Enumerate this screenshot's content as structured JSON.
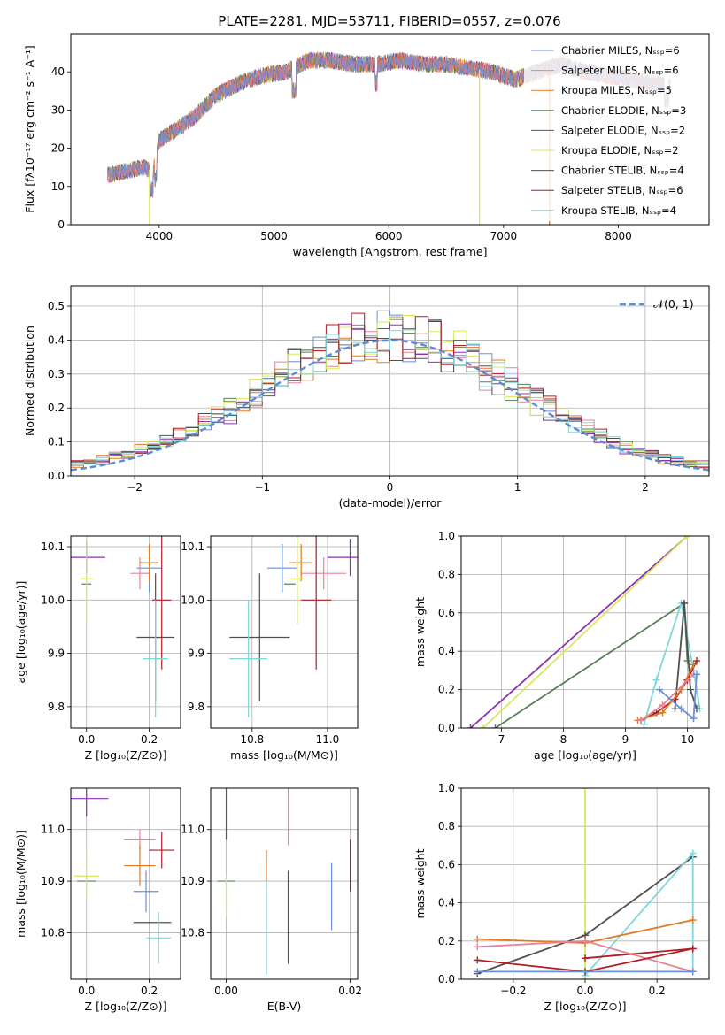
{
  "colors": {
    "chabrier_miles": "#6a8fdc",
    "salpeter_miles": "#e8829b",
    "kroupa_miles": "#e07a25",
    "chabrier_elodie": "#55805a",
    "salpeter_elodie": "#8e2fb0",
    "kroupa_elodie": "#d6ea5a",
    "chabrier_stelib": "#505050",
    "salpeter_stelib": "#b01e22",
    "kroupa_stelib": "#7fd7d8",
    "gaussian": "#5b8ad6"
  },
  "chart_data": [
    {
      "id": "spectrum",
      "type": "line",
      "title": "PLATE=2281, MJD=53711, FIBERID=0557, z=0.076",
      "xlabel": "wavelength [Angstrom, rest frame]",
      "ylabel": "Flux [fλ10⁻¹⁷ erg cm⁻² s⁻¹ A⁻¹]",
      "xlim": [
        3230,
        8790
      ],
      "ylim": [
        0,
        50
      ],
      "xticks": [
        "4000",
        "5000",
        "6000",
        "7000",
        "8000"
      ],
      "yticks": [
        "0",
        "10",
        "20",
        "30",
        "40"
      ],
      "grid": false,
      "legend_position": "top-right",
      "envelope": {
        "x": [
          3550,
          3700,
          3850,
          3950,
          4000,
          4100,
          4200,
          4300,
          4400,
          4500,
          4700,
          4900,
          5100,
          5300,
          5500,
          5700,
          5900,
          6100,
          6300,
          6500,
          6700,
          6900,
          7100,
          7300,
          7500,
          7700,
          7900,
          8100,
          8300,
          8450
        ],
        "y": [
          13,
          14,
          15,
          14,
          22,
          24,
          26,
          28,
          31,
          34,
          37,
          39,
          40,
          43,
          43,
          42,
          42,
          43,
          42,
          42,
          41,
          40,
          38,
          40,
          42,
          40,
          39,
          38,
          37,
          36
        ]
      },
      "spikes_x": [
        3915,
        6790,
        7400
      ],
      "series": [
        {
          "name": "Chabrier MILES, Nₛₛₚ=6"
        },
        {
          "name": "Salpeter MILES, Nₛₛₚ=6"
        },
        {
          "name": "Kroupa MILES, Nₛₛₚ=5"
        },
        {
          "name": "Chabrier ELODIE, Nₛₛₚ=3"
        },
        {
          "name": "Salpeter ELODIE, Nₛₛₚ=2"
        },
        {
          "name": "Kroupa ELODIE, Nₛₛₚ=2"
        },
        {
          "name": "Chabrier STELIB, Nₛₛₚ=4"
        },
        {
          "name": "Salpeter STELIB, Nₛₛₚ=6"
        },
        {
          "name": "Kroupa STELIB, Nₛₛₚ=4"
        }
      ]
    },
    {
      "id": "residuals",
      "type": "histogram",
      "xlabel": "(data-model)/error",
      "ylabel": "Normed distribution",
      "xlim": [
        -2.5,
        2.5
      ],
      "ylim": [
        0,
        0.56
      ],
      "xticks": [
        "−2",
        "−1",
        "0",
        "1",
        "2"
      ],
      "yticks": [
        "0.0",
        "0.1",
        "0.2",
        "0.3",
        "0.4",
        "0.5"
      ],
      "grid": true,
      "legend_position": "top-right",
      "legend": "𝒩(0, 1)",
      "bin_width": 0.1,
      "bin_start": -2.5,
      "profile": [
        0.02,
        0.02,
        0.03,
        0.03,
        0.04,
        0.05,
        0.06,
        0.07,
        0.08,
        0.09,
        0.11,
        0.12,
        0.14,
        0.16,
        0.17,
        0.18,
        0.19,
        0.21,
        0.23,
        0.25,
        0.26,
        0.28,
        0.3,
        0.32,
        0.33,
        0.35,
        0.37,
        0.38,
        0.39,
        0.4,
        0.41,
        0.42,
        0.43,
        0.44,
        0.45,
        0.46,
        0.45,
        0.44,
        0.43,
        0.42,
        0.41,
        0.4,
        0.39,
        0.38,
        0.36,
        0.34,
        0.32,
        0.3,
        0.28,
        0.26,
        0.24,
        0.22,
        0.2,
        0.19,
        0.18,
        0.16,
        0.15,
        0.13,
        0.12,
        0.11,
        0.1,
        0.09,
        0.08,
        0.07,
        0.06,
        0.05,
        0.04,
        0.035,
        0.03,
        0.03,
        0.03,
        0.02,
        0.02,
        0.02,
        0.02,
        0.02,
        0.02,
        0.02,
        0.02,
        0.02,
        0.02,
        0.02,
        0.02,
        0.02,
        0.02,
        0.02,
        0.02,
        0.02,
        0.02,
        0.02
      ]
    },
    {
      "id": "age_vs_Z",
      "type": "scatter",
      "xlabel": "Z [log₁₀(Z/Z⊙)]",
      "ylabel": "age  [log₁₀(age/yr)]",
      "xlim": [
        -0.05,
        0.3
      ],
      "ylim": [
        9.76,
        10.12
      ],
      "xticks": [
        "0.0",
        "0.2"
      ],
      "yticks": [
        "9.8",
        "9.9",
        "10.0",
        "10.1"
      ],
      "grid": true,
      "points": [
        {
          "c": "chabrier_miles",
          "x": 0.2,
          "y": 10.06,
          "ex": 0.04,
          "ey": 0.045
        },
        {
          "c": "salpeter_miles",
          "x": 0.17,
          "y": 10.05,
          "ex": 0.03,
          "ey": 0.03
        },
        {
          "c": "kroupa_miles",
          "x": 0.2,
          "y": 10.07,
          "ex": 0.03,
          "ey": 0.035
        },
        {
          "c": "chabrier_elodie",
          "x": 0.0,
          "y": 10.03,
          "ex": 0.015,
          "ey": 0.0
        },
        {
          "c": "salpeter_elodie",
          "x": 0.0,
          "y": 10.08,
          "ex": 0.06,
          "ey": 0.03
        },
        {
          "c": "kroupa_elodie",
          "x": 0.0,
          "y": 10.04,
          "ex": 0.02,
          "ey": 0.085
        },
        {
          "c": "chabrier_stelib",
          "x": 0.22,
          "y": 9.93,
          "ex": 0.06,
          "ey": 0.12
        },
        {
          "c": "salpeter_stelib",
          "x": 0.24,
          "y": 10.0,
          "ex": 0.03,
          "ey": 0.13
        },
        {
          "c": "kroupa_stelib",
          "x": 0.22,
          "y": 9.89,
          "ex": 0.04,
          "ey": 0.11
        }
      ]
    },
    {
      "id": "age_vs_mass",
      "type": "scatter",
      "xlabel": "mass [log₁₀(M/M⊙)]",
      "ylabel": "",
      "xlim": [
        10.69,
        11.08
      ],
      "ylim": [
        9.76,
        10.12
      ],
      "xticks": [
        "10.8",
        "11.0"
      ],
      "yticks": [
        "9.8",
        "9.9",
        "10.0",
        "10.1"
      ],
      "grid": true,
      "points": [
        {
          "c": "chabrier_miles",
          "x": 10.88,
          "y": 10.06,
          "ex": 0.04,
          "ey": 0.045
        },
        {
          "c": "salpeter_miles",
          "x": 10.99,
          "y": 10.05,
          "ex": 0.06,
          "ey": 0.03
        },
        {
          "c": "kroupa_miles",
          "x": 10.93,
          "y": 10.07,
          "ex": 0.03,
          "ey": 0.035
        },
        {
          "c": "chabrier_elodie",
          "x": 10.9,
          "y": 10.03,
          "ex": 0.015,
          "ey": 0.0
        },
        {
          "c": "salpeter_elodie",
          "x": 11.06,
          "y": 10.08,
          "ex": 0.06,
          "ey": 0.035
        },
        {
          "c": "kroupa_elodie",
          "x": 10.92,
          "y": 10.04,
          "ex": 0.02,
          "ey": 0.085
        },
        {
          "c": "chabrier_stelib",
          "x": 10.82,
          "y": 9.93,
          "ex": 0.08,
          "ey": 0.12
        },
        {
          "c": "salpeter_stelib",
          "x": 10.97,
          "y": 10.0,
          "ex": 0.04,
          "ey": 0.13
        },
        {
          "c": "kroupa_stelib",
          "x": 10.79,
          "y": 9.89,
          "ex": 0.05,
          "ey": 0.11
        }
      ]
    },
    {
      "id": "weight_vs_age",
      "type": "line",
      "xlabel": "age  [log₁₀(age/yr)]",
      "ylabel": "mass weight",
      "xlim": [
        6.35,
        10.35
      ],
      "ylim": [
        0.0,
        1.0
      ],
      "xticks": [
        "7",
        "8",
        "9",
        "10"
      ],
      "yticks": [
        "0.0",
        "0.2",
        "0.4",
        "0.6",
        "0.8",
        "1.0"
      ],
      "grid": true,
      "series": [
        {
          "c": "salpeter_elodie",
          "x": [
            6.5,
            10.0
          ],
          "y": [
            0.0,
            1.0
          ]
        },
        {
          "c": "kroupa_elodie",
          "x": [
            6.7,
            10.0
          ],
          "y": [
            0.0,
            1.0
          ]
        },
        {
          "c": "chabrier_elodie",
          "x": [
            6.9,
            9.95,
            10.0
          ],
          "y": [
            0.0,
            0.65,
            0.35
          ]
        },
        {
          "c": "kroupa_stelib",
          "x": [
            9.3,
            9.5,
            9.9,
            10.1,
            10.2
          ],
          "y": [
            0.02,
            0.25,
            0.65,
            0.3,
            0.1
          ]
        },
        {
          "c": "chabrier_stelib",
          "x": [
            9.8,
            9.95,
            10.05,
            10.15
          ],
          "y": [
            0.1,
            0.65,
            0.2,
            0.1
          ]
        },
        {
          "c": "salpeter_stelib",
          "x": [
            9.25,
            9.5,
            9.8,
            10.0,
            10.15
          ],
          "y": [
            0.04,
            0.08,
            0.15,
            0.25,
            0.35
          ]
        },
        {
          "c": "kroupa_miles",
          "x": [
            9.2,
            9.6,
            9.9,
            10.1
          ],
          "y": [
            0.04,
            0.08,
            0.2,
            0.33
          ]
        },
        {
          "c": "salpeter_miles",
          "x": [
            9.25,
            9.6,
            10.1
          ],
          "y": [
            0.04,
            0.12,
            0.28
          ]
        },
        {
          "c": "chabrier_miles",
          "x": [
            9.55,
            9.9,
            10.1,
            10.15
          ],
          "y": [
            0.2,
            0.1,
            0.05,
            0.28
          ]
        }
      ]
    },
    {
      "id": "mass_vs_Z",
      "type": "scatter",
      "xlabel": "Z [log₁₀(Z/Z⊙)]",
      "ylabel": "mass [log₁₀(M/M⊙)]",
      "xlim": [
        -0.05,
        0.3
      ],
      "ylim": [
        10.71,
        11.08
      ],
      "xticks": [
        "0.0",
        "0.2"
      ],
      "yticks": [
        "10.8",
        "10.9",
        "11.0"
      ],
      "grid": true,
      "points": [
        {
          "c": "chabrier_miles",
          "x": 0.19,
          "y": 10.88,
          "ex": 0.04,
          "ey": 0.04
        },
        {
          "c": "salpeter_miles",
          "x": 0.17,
          "y": 10.98,
          "ex": 0.05,
          "ey": 0.02
        },
        {
          "c": "kroupa_miles",
          "x": 0.17,
          "y": 10.93,
          "ex": 0.05,
          "ey": 0.04
        },
        {
          "c": "chabrier_elodie",
          "x": 0.0,
          "y": 10.9,
          "ex": 0.03,
          "ey": 0.0
        },
        {
          "c": "salpeter_elodie",
          "x": 0.0,
          "y": 11.06,
          "ex": 0.07,
          "ey": 0.035
        },
        {
          "c": "kroupa_elodie",
          "x": 0.0,
          "y": 10.91,
          "ex": 0.04,
          "ey": 0.045
        },
        {
          "c": "chabrier_stelib",
          "x": 0.21,
          "y": 10.82,
          "ex": 0.06,
          "ey": 0.0
        },
        {
          "c": "salpeter_stelib",
          "x": 0.24,
          "y": 10.96,
          "ex": 0.04,
          "ey": 0.035
        },
        {
          "c": "kroupa_stelib",
          "x": 0.23,
          "y": 10.79,
          "ex": 0.04,
          "ey": 0.05
        }
      ]
    },
    {
      "id": "mass_vs_EBV",
      "type": "scatter",
      "xlabel": "E(B-V)",
      "ylabel": "",
      "xlim": [
        -0.0025,
        0.0212
      ],
      "ylim": [
        10.71,
        11.08
      ],
      "xticks": [
        "0.00",
        "0.02"
      ],
      "yticks": [
        "10.8",
        "10.9",
        "11.0"
      ],
      "grid": true,
      "points": [
        {
          "c": "chabrier_miles",
          "x": 0.017,
          "y": 10.87,
          "ex": 0,
          "ey": 0.065
        },
        {
          "c": "salpeter_miles",
          "x": 0.01,
          "y": 11.05,
          "ex": 0,
          "ey": 0.08
        },
        {
          "c": "kroupa_miles",
          "x": 0.0065,
          "y": 10.93,
          "ex": 0,
          "ey": 0.03
        },
        {
          "c": "chabrier_elodie",
          "x": 0.0,
          "y": 10.9,
          "ex": 0,
          "ey": 0.0
        },
        {
          "c": "salpeter_elodie",
          "x": 0.0,
          "y": 11.03,
          "ex": 0,
          "ey": 0.05
        },
        {
          "c": "kroupa_elodie",
          "x": 0.0,
          "y": 10.87,
          "ex": 0,
          "ey": 0.04
        },
        {
          "c": "chabrier_stelib",
          "x": 0.01,
          "y": 10.83,
          "ex": 0,
          "ey": 0.09
        },
        {
          "c": "salpeter_stelib",
          "x": 0.02,
          "y": 10.93,
          "ex": 0,
          "ey": 0.05
        },
        {
          "c": "kroupa_stelib",
          "x": 0.0065,
          "y": 10.81,
          "ex": 0,
          "ey": 0.09
        }
      ]
    },
    {
      "id": "weight_vs_Z",
      "type": "line",
      "xlabel": "Z [log₁₀(Z/Z⊙)]",
      "ylabel": "mass weight",
      "xlim": [
        -0.345,
        0.345
      ],
      "ylim": [
        0.0,
        1.0
      ],
      "xticks": [
        "−0.2",
        "0.0",
        "0.2"
      ],
      "yticks": [
        "0.0",
        "0.2",
        "0.4",
        "0.6",
        "0.8",
        "1.0"
      ],
      "grid": true,
      "series": [
        {
          "c": "kroupa_elodie",
          "x": [
            0.0,
            0.0
          ],
          "y": [
            0.0,
            1.0
          ]
        },
        {
          "c": "chabrier_stelib",
          "x": [
            -0.3,
            0.0,
            0.3
          ],
          "y": [
            0.03,
            0.23,
            0.64
          ]
        },
        {
          "c": "kroupa_stelib",
          "x": [
            0.0,
            0.3,
            0.3
          ],
          "y": [
            0.02,
            0.66,
            0.04
          ]
        },
        {
          "c": "kroupa_miles",
          "x": [
            -0.3,
            0.0,
            0.3
          ],
          "y": [
            0.21,
            0.19,
            0.31
          ]
        },
        {
          "c": "salpeter_miles",
          "x": [
            -0.3,
            0.0,
            0.3
          ],
          "y": [
            0.17,
            0.2,
            0.04
          ]
        },
        {
          "c": "salpeter_stelib",
          "x": [
            -0.3,
            0.0,
            0.3
          ],
          "y": [
            0.1,
            0.04,
            0.16
          ]
        },
        {
          "c": "salpeter_stelib",
          "x": [
            0.0,
            0.3
          ],
          "y": [
            0.11,
            0.16
          ]
        },
        {
          "c": "chabrier_miles",
          "x": [
            -0.3,
            0.3
          ],
          "y": [
            0.04,
            0.04
          ]
        }
      ]
    }
  ]
}
